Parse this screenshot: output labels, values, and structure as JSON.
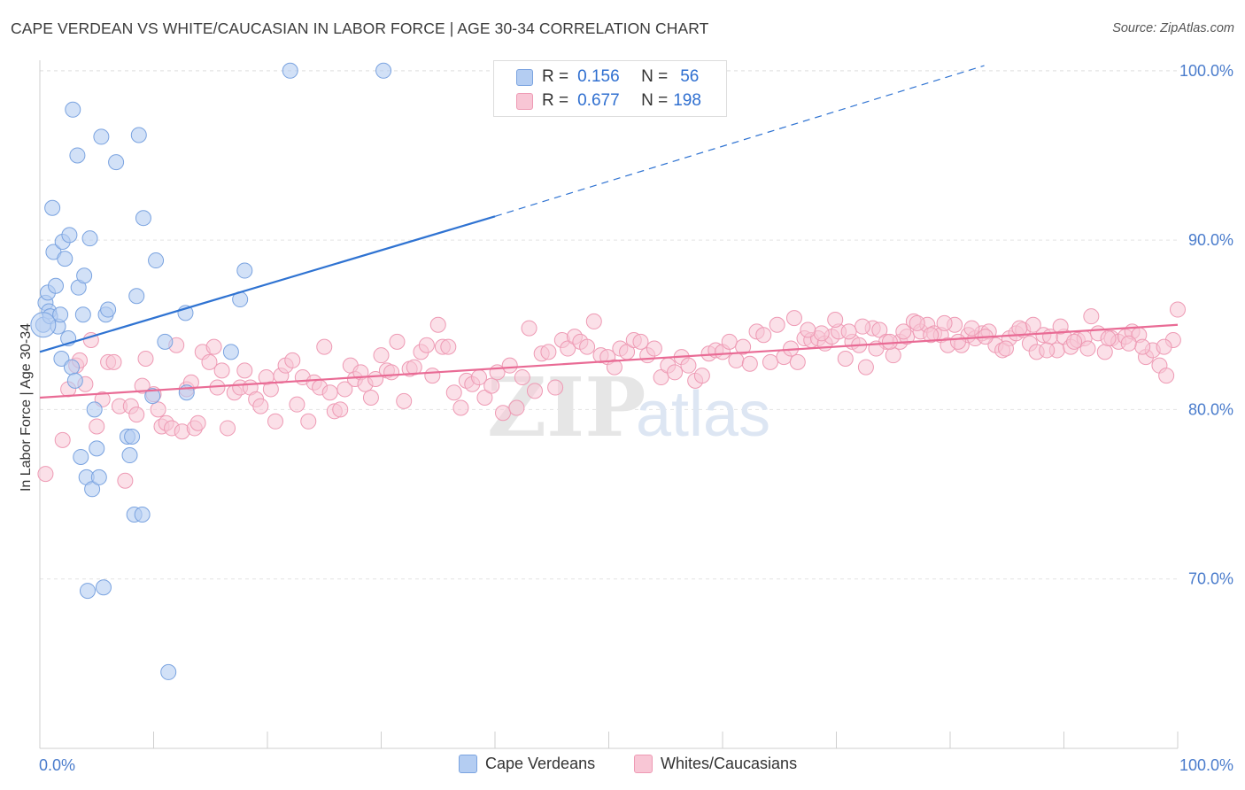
{
  "header": {
    "title": "CAPE VERDEAN VS WHITE/CAUCASIAN IN LABOR FORCE | AGE 30-34 CORRELATION CHART",
    "source": "Source: ZipAtlas.com"
  },
  "legend": {
    "rows": [
      {
        "r_label": "R =",
        "r_value": "0.156",
        "n_label": "N =",
        "n_value": "56"
      },
      {
        "r_label": "R =",
        "r_value": "0.677",
        "n_label": "N =",
        "n_value": "198"
      }
    ]
  },
  "bottom_legend": {
    "items": [
      {
        "label": "Cape Verdeans"
      },
      {
        "label": "Whites/Caucasians"
      }
    ]
  },
  "colors": {
    "blue_fill": "#b4cdf2",
    "blue_stroke": "#7aa3e0",
    "blue_line": "#2f73d2",
    "pink_fill": "#f8c6d5",
    "pink_stroke": "#ee9ab4",
    "pink_line": "#e96b95",
    "grid": "#e3e3e3",
    "tick_label": "#4a7ccc",
    "watermark": "#e6e6e6"
  },
  "chart_data": {
    "type": "scatter",
    "title": "CAPE VERDEAN VS WHITE/CAUCASIAN IN LABOR FORCE | AGE 30-34 CORRELATION CHART",
    "xlabel": "",
    "ylabel": "In Labor Force | Age 30-34",
    "xlim": [
      0,
      100
    ],
    "ylim": [
      59,
      103
    ],
    "x_tick_labels": [
      "0.0%",
      "100.0%"
    ],
    "y_ticks": [
      70,
      80,
      90,
      100
    ],
    "y_tick_labels": [
      "70.0%",
      "80.0%",
      "90.0%",
      "100.0%"
    ],
    "grid": true,
    "watermark": "ZIPatlas",
    "legend_position": "top-center",
    "series": [
      {
        "name": "Cape Verdeans",
        "R": 0.156,
        "N": 56,
        "trend": {
          "x0": 0,
          "y0": 83.4,
          "x1": 40,
          "y1": 91.4,
          "x_extend": 83,
          "y_extend": 100.3
        },
        "points": [
          [
            0.3,
            85.0
          ],
          [
            0.5,
            86.3
          ],
          [
            0.7,
            86.9
          ],
          [
            0.8,
            85.8
          ],
          [
            0.9,
            85.5
          ],
          [
            1.1,
            91.9
          ],
          [
            1.2,
            89.3
          ],
          [
            1.4,
            87.3
          ],
          [
            1.6,
            84.9
          ],
          [
            1.8,
            85.6
          ],
          [
            1.9,
            83.0
          ],
          [
            2.0,
            89.9
          ],
          [
            2.2,
            88.9
          ],
          [
            2.5,
            84.2
          ],
          [
            2.6,
            90.3
          ],
          [
            2.8,
            82.5
          ],
          [
            2.9,
            97.7
          ],
          [
            3.1,
            81.7
          ],
          [
            3.3,
            95.0
          ],
          [
            3.4,
            87.2
          ],
          [
            3.6,
            77.2
          ],
          [
            3.8,
            85.6
          ],
          [
            3.9,
            87.9
          ],
          [
            4.1,
            76.0
          ],
          [
            4.2,
            69.3
          ],
          [
            4.4,
            90.1
          ],
          [
            4.6,
            75.3
          ],
          [
            4.8,
            80.0
          ],
          [
            5.0,
            77.7
          ],
          [
            5.2,
            76.0
          ],
          [
            5.4,
            96.1
          ],
          [
            5.6,
            69.5
          ],
          [
            5.8,
            85.6
          ],
          [
            6.0,
            85.9
          ],
          [
            6.7,
            94.6
          ],
          [
            7.7,
            78.4
          ],
          [
            7.9,
            77.3
          ],
          [
            8.1,
            78.4
          ],
          [
            8.3,
            73.8
          ],
          [
            8.5,
            86.7
          ],
          [
            8.7,
            96.2
          ],
          [
            9.0,
            73.8
          ],
          [
            9.1,
            91.3
          ],
          [
            9.9,
            80.8
          ],
          [
            10.2,
            88.8
          ],
          [
            11.0,
            84.0
          ],
          [
            11.3,
            64.5
          ],
          [
            12.8,
            85.7
          ],
          [
            12.9,
            81.0
          ],
          [
            16.8,
            83.4
          ],
          [
            17.6,
            86.5
          ],
          [
            18.0,
            88.2
          ],
          [
            22.0,
            100.0
          ],
          [
            30.2,
            100.0
          ]
        ]
      },
      {
        "name": "Whites/Caucasians",
        "R": 0.677,
        "N": 198,
        "trend": {
          "x0": 0,
          "y0": 80.7,
          "x1": 100,
          "y1": 85.0
        },
        "points": [
          [
            0.5,
            76.2
          ],
          [
            2.0,
            78.2
          ],
          [
            2.5,
            81.2
          ],
          [
            3.2,
            82.6
          ],
          [
            3.5,
            82.9
          ],
          [
            4.0,
            81.5
          ],
          [
            4.5,
            84.1
          ],
          [
            5.0,
            79.0
          ],
          [
            5.5,
            80.6
          ],
          [
            6.0,
            82.8
          ],
          [
            6.5,
            82.8
          ],
          [
            7.0,
            80.2
          ],
          [
            7.5,
            75.8
          ],
          [
            8.0,
            80.2
          ],
          [
            8.5,
            79.7
          ],
          [
            9.0,
            81.4
          ],
          [
            9.3,
            83.0
          ],
          [
            10.0,
            80.9
          ],
          [
            10.4,
            80.0
          ],
          [
            10.7,
            79.0
          ],
          [
            11.1,
            79.2
          ],
          [
            11.6,
            78.9
          ],
          [
            12.0,
            83.8
          ],
          [
            12.5,
            78.7
          ],
          [
            12.9,
            81.2
          ],
          [
            13.3,
            81.6
          ],
          [
            13.6,
            78.9
          ],
          [
            13.9,
            79.2
          ],
          [
            14.3,
            83.4
          ],
          [
            14.9,
            82.8
          ],
          [
            15.3,
            83.7
          ],
          [
            15.6,
            81.3
          ],
          [
            16.0,
            82.3
          ],
          [
            16.5,
            78.9
          ],
          [
            17.1,
            81.0
          ],
          [
            17.6,
            81.3
          ],
          [
            18.0,
            82.3
          ],
          [
            18.5,
            81.3
          ],
          [
            19.0,
            80.6
          ],
          [
            19.4,
            80.2
          ],
          [
            19.9,
            81.9
          ],
          [
            20.3,
            81.2
          ],
          [
            20.7,
            79.3
          ],
          [
            21.2,
            82.0
          ],
          [
            21.6,
            82.6
          ],
          [
            22.2,
            82.9
          ],
          [
            22.6,
            80.3
          ],
          [
            23.1,
            81.9
          ],
          [
            23.6,
            79.3
          ],
          [
            24.1,
            81.6
          ],
          [
            24.6,
            81.3
          ],
          [
            25.0,
            83.7
          ],
          [
            25.5,
            81.0
          ],
          [
            25.9,
            79.9
          ],
          [
            26.4,
            80.0
          ],
          [
            26.8,
            81.2
          ],
          [
            27.3,
            82.6
          ],
          [
            27.7,
            81.8
          ],
          [
            28.2,
            82.2
          ],
          [
            28.6,
            81.5
          ],
          [
            29.1,
            80.7
          ],
          [
            29.5,
            81.8
          ],
          [
            30.0,
            83.2
          ],
          [
            30.5,
            82.3
          ],
          [
            30.9,
            82.2
          ],
          [
            31.4,
            84.0
          ],
          [
            32.0,
            80.5
          ],
          [
            32.5,
            82.4
          ],
          [
            32.9,
            82.5
          ],
          [
            33.5,
            83.4
          ],
          [
            34.0,
            83.8
          ],
          [
            34.5,
            82.0
          ],
          [
            35.0,
            85.0
          ],
          [
            35.4,
            83.7
          ],
          [
            35.9,
            83.7
          ],
          [
            36.4,
            81.0
          ],
          [
            37.0,
            80.1
          ],
          [
            37.5,
            81.7
          ],
          [
            38.0,
            81.5
          ],
          [
            38.6,
            81.9
          ],
          [
            39.1,
            80.7
          ],
          [
            39.7,
            81.4
          ],
          [
            40.2,
            82.2
          ],
          [
            40.7,
            79.8
          ],
          [
            41.3,
            82.6
          ],
          [
            41.9,
            80.1
          ],
          [
            42.4,
            81.9
          ],
          [
            43.0,
            84.8
          ],
          [
            43.5,
            81.1
          ],
          [
            44.1,
            83.3
          ],
          [
            44.7,
            83.4
          ],
          [
            45.3,
            81.3
          ],
          [
            45.9,
            84.1
          ],
          [
            46.4,
            83.6
          ],
          [
            47.0,
            84.3
          ],
          [
            47.5,
            84.0
          ],
          [
            48.1,
            83.7
          ],
          [
            48.7,
            85.2
          ],
          [
            49.3,
            83.2
          ],
          [
            49.9,
            83.1
          ],
          [
            50.5,
            82.5
          ],
          [
            51.0,
            83.6
          ],
          [
            51.6,
            83.4
          ],
          [
            52.2,
            84.1
          ],
          [
            52.8,
            84.0
          ],
          [
            53.4,
            83.2
          ],
          [
            54.0,
            83.6
          ],
          [
            54.6,
            81.9
          ],
          [
            55.2,
            82.6
          ],
          [
            55.8,
            82.2
          ],
          [
            56.4,
            83.1
          ],
          [
            57.0,
            82.6
          ],
          [
            57.6,
            81.7
          ],
          [
            58.2,
            82.0
          ],
          [
            58.8,
            83.3
          ],
          [
            59.4,
            83.5
          ],
          [
            60.0,
            83.4
          ],
          [
            60.6,
            84.0
          ],
          [
            61.2,
            82.9
          ],
          [
            61.8,
            83.7
          ],
          [
            62.4,
            82.7
          ],
          [
            63.0,
            84.6
          ],
          [
            63.6,
            84.4
          ],
          [
            64.2,
            82.8
          ],
          [
            64.8,
            85.0
          ],
          [
            65.4,
            83.1
          ],
          [
            66.0,
            83.6
          ],
          [
            66.6,
            82.8
          ],
          [
            67.2,
            84.2
          ],
          [
            67.8,
            84.1
          ],
          [
            68.4,
            84.2
          ],
          [
            69.0,
            83.9
          ],
          [
            69.6,
            84.3
          ],
          [
            70.2,
            84.6
          ],
          [
            70.8,
            83.0
          ],
          [
            71.4,
            84.0
          ],
          [
            72.0,
            83.8
          ],
          [
            72.6,
            82.5
          ],
          [
            73.2,
            84.8
          ],
          [
            73.8,
            84.7
          ],
          [
            74.4,
            84.0
          ],
          [
            75.0,
            83.2
          ],
          [
            75.6,
            84.0
          ],
          [
            76.2,
            84.3
          ],
          [
            76.8,
            85.2
          ],
          [
            77.4,
            84.6
          ],
          [
            78.0,
            85.0
          ],
          [
            78.6,
            84.5
          ],
          [
            79.2,
            84.4
          ],
          [
            79.8,
            83.8
          ],
          [
            80.4,
            85.0
          ],
          [
            81.0,
            83.8
          ],
          [
            81.6,
            84.4
          ],
          [
            82.2,
            84.2
          ],
          [
            82.8,
            84.5
          ],
          [
            83.4,
            84.6
          ],
          [
            84.0,
            83.8
          ],
          [
            84.6,
            83.5
          ],
          [
            85.2,
            84.2
          ],
          [
            85.8,
            84.5
          ],
          [
            86.4,
            84.7
          ],
          [
            87.0,
            83.9
          ],
          [
            87.6,
            83.4
          ],
          [
            88.2,
            84.4
          ],
          [
            88.8,
            84.3
          ],
          [
            89.4,
            83.5
          ],
          [
            90.0,
            84.3
          ],
          [
            90.6,
            83.7
          ],
          [
            91.2,
            84.1
          ],
          [
            91.8,
            84.2
          ],
          [
            92.4,
            85.5
          ],
          [
            93.0,
            84.5
          ],
          [
            93.6,
            83.4
          ],
          [
            94.2,
            84.2
          ],
          [
            94.8,
            84.0
          ],
          [
            95.4,
            84.3
          ],
          [
            96.0,
            84.6
          ],
          [
            96.6,
            84.4
          ],
          [
            97.2,
            83.1
          ],
          [
            97.8,
            83.5
          ],
          [
            98.4,
            82.6
          ],
          [
            99.0,
            82.0
          ],
          [
            99.6,
            84.1
          ],
          [
            100.0,
            85.9
          ],
          [
            98.8,
            83.7
          ],
          [
            96.9,
            83.7
          ],
          [
            95.7,
            83.9
          ],
          [
            93.9,
            84.2
          ],
          [
            92.1,
            83.6
          ],
          [
            90.9,
            84.0
          ],
          [
            89.7,
            84.9
          ],
          [
            88.5,
            83.5
          ],
          [
            87.3,
            85.0
          ],
          [
            86.1,
            84.8
          ],
          [
            84.9,
            83.6
          ],
          [
            83.1,
            84.3
          ],
          [
            81.9,
            84.8
          ],
          [
            80.7,
            84.0
          ],
          [
            79.5,
            85.1
          ],
          [
            78.3,
            84.4
          ],
          [
            77.1,
            85.1
          ],
          [
            75.9,
            84.6
          ],
          [
            74.7,
            84.0
          ],
          [
            73.5,
            83.6
          ],
          [
            72.3,
            84.9
          ],
          [
            71.1,
            84.6
          ],
          [
            69.9,
            85.3
          ],
          [
            68.7,
            84.5
          ],
          [
            67.5,
            84.7
          ],
          [
            66.3,
            85.4
          ]
        ]
      }
    ]
  }
}
